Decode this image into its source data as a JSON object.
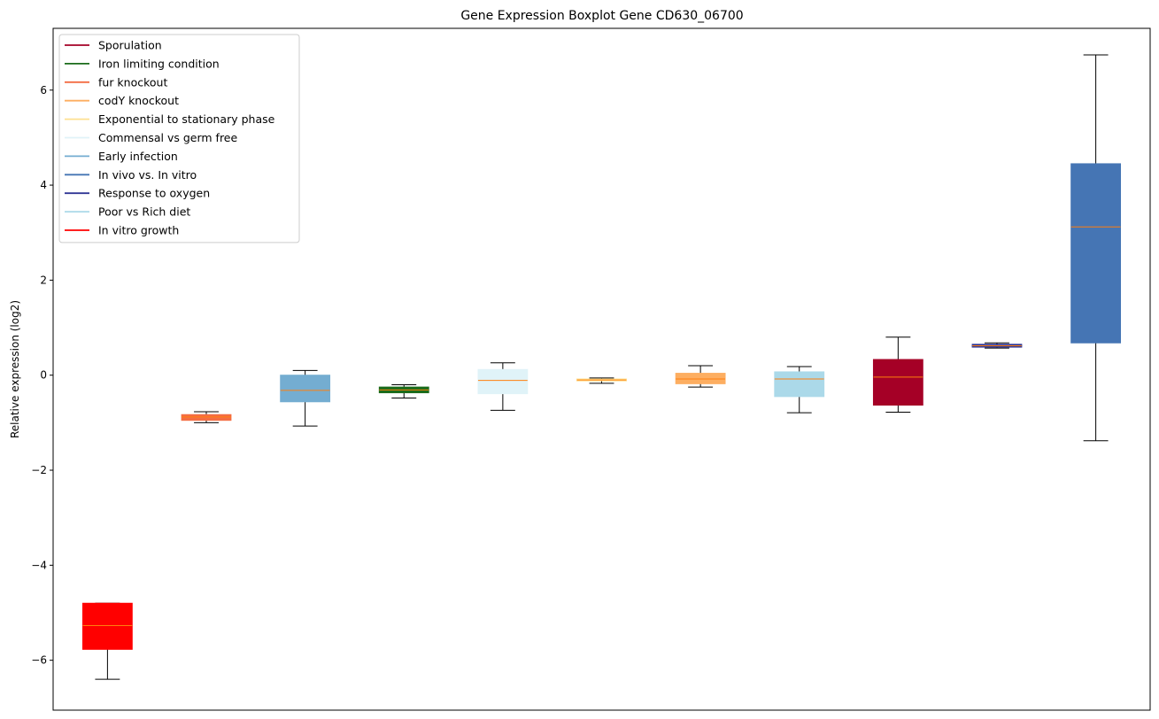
{
  "chart_data": {
    "type": "boxplot",
    "title": "Gene Expression Boxplot Gene CD630_06700",
    "ylabel": "Relative expression (log2)",
    "xlabel": "",
    "ylim": [
      -7.05,
      7.3
    ],
    "yticks": [
      6,
      4,
      2,
      0,
      -2,
      -4,
      -6
    ],
    "ytick_labels": [
      "6",
      "4",
      "2",
      "0",
      "−2",
      "−4",
      "−6"
    ],
    "median_color": "#ff7f0e",
    "legend_placement": "upper-left",
    "legend": [
      {
        "label": "Sporulation",
        "color": "#a50026"
      },
      {
        "label": "Iron limiting condition",
        "color": "#1a6b1a"
      },
      {
        "label": "fur knockout",
        "color": "#f46d43"
      },
      {
        "label": "codY knockout",
        "color": "#fdae61"
      },
      {
        "label": "Exponential to stationary phase",
        "color": "#fee090"
      },
      {
        "label": "Commensal vs germ free",
        "color": "#e0f3f8"
      },
      {
        "label": "Early infection",
        "color": "#74add1"
      },
      {
        "label": "In vivo vs. In vitro",
        "color": "#4575b4"
      },
      {
        "label": "Response to oxygen",
        "color": "#313695"
      },
      {
        "label": "Poor vs Rich diet",
        "color": "#abd9e9"
      },
      {
        "label": "In vitro growth",
        "color": "#ff0000"
      }
    ],
    "boxes": [
      {
        "group": "In vitro growth",
        "color": "#ff0000",
        "whisker_low": -6.4,
        "q1": -5.77,
        "median": -5.27,
        "q3": -4.8,
        "whisker_high": -4.8
      },
      {
        "group": "fur knockout",
        "color": "#f46d43",
        "whisker_low": -1.0,
        "q1": -0.95,
        "median": -0.88,
        "q3": -0.83,
        "whisker_high": -0.77
      },
      {
        "group": "Early infection",
        "color": "#74add1",
        "whisker_low": -1.07,
        "q1": -0.56,
        "median": -0.32,
        "q3": 0.0,
        "whisker_high": 0.1
      },
      {
        "group": "Iron limiting condition",
        "color": "#1a6b1a",
        "whisker_low": -0.48,
        "q1": -0.37,
        "median": -0.31,
        "q3": -0.25,
        "whisker_high": -0.2
      },
      {
        "group": "Commensal vs germ free",
        "color": "#e0f3f8",
        "whisker_low": -0.74,
        "q1": -0.39,
        "median": -0.11,
        "q3": 0.12,
        "whisker_high": 0.26
      },
      {
        "group": "Exponential to stationary phase",
        "color": "#fee090",
        "whisker_low": -0.17,
        "q1": -0.12,
        "median": -0.1,
        "q3": -0.08,
        "whisker_high": -0.06
      },
      {
        "group": "codY knockout",
        "color": "#fdae61",
        "whisker_low": -0.25,
        "q1": -0.18,
        "median": -0.08,
        "q3": 0.04,
        "whisker_high": 0.2
      },
      {
        "group": "Poor vs Rich diet",
        "color": "#abd9e9",
        "whisker_low": -0.79,
        "q1": -0.45,
        "median": -0.08,
        "q3": 0.07,
        "whisker_high": 0.18
      },
      {
        "group": "Sporulation",
        "color": "#a50026",
        "whisker_low": -0.78,
        "q1": -0.63,
        "median": -0.04,
        "q3": 0.33,
        "whisker_high": 0.8
      },
      {
        "group": "Response to oxygen",
        "color": "#313695",
        "whisker_low": 0.57,
        "q1": 0.59,
        "median": 0.62,
        "q3": 0.65,
        "whisker_high": 0.68
      },
      {
        "group": "In vivo vs. In vitro",
        "color": "#4575b4",
        "whisker_low": -1.38,
        "q1": 0.68,
        "median": 3.12,
        "q3": 4.45,
        "whisker_high": 6.74
      }
    ]
  }
}
